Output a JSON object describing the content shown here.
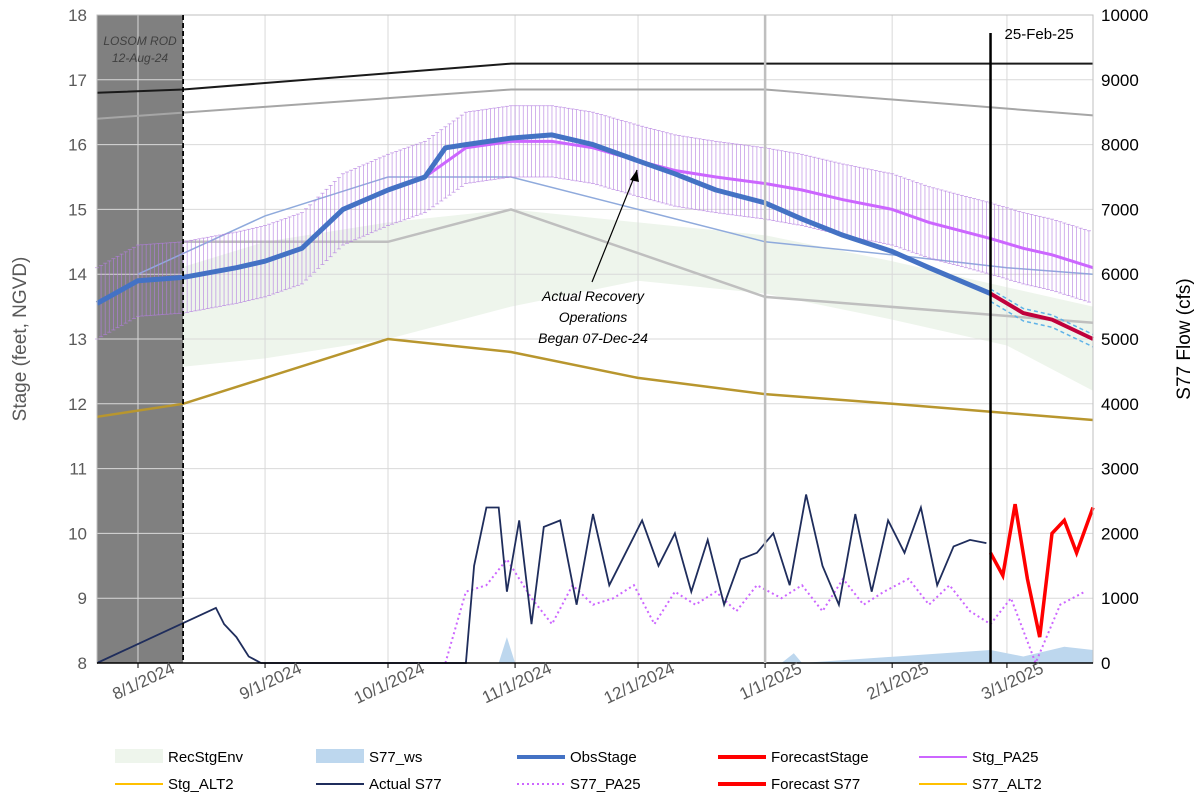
{
  "chart_data": {
    "type": "line",
    "title": "",
    "ylabel": "Stage (feet, NGVD)",
    "y2label": "S77 Flow (cfs)",
    "ylim": [
      8,
      18
    ],
    "y2lim": [
      0,
      10000
    ],
    "xlim": [
      "2024-07-22",
      "2025-03-22"
    ],
    "y_ticks": [
      "8",
      "9",
      "10",
      "11",
      "12",
      "13",
      "14",
      "15",
      "16",
      "17",
      "18"
    ],
    "y2_ticks": [
      "0",
      "1000",
      "2000",
      "3000",
      "4000",
      "5000",
      "6000",
      "7000",
      "8000",
      "9000",
      "10000"
    ],
    "x_ticks": [
      {
        "date": "2024-08-01",
        "label": "8/1/2024"
      },
      {
        "date": "2024-09-01",
        "label": "9/1/2024"
      },
      {
        "date": "2024-10-01",
        "label": "10/1/2024"
      },
      {
        "date": "2024-11-01",
        "label": "11/1/2024"
      },
      {
        "date": "2024-12-01",
        "label": "12/1/2024"
      },
      {
        "date": "2025-01-01",
        "label": "1/1/2025"
      },
      {
        "date": "2025-02-01",
        "label": "2/1/2025"
      },
      {
        "date": "2025-03-01",
        "label": "3/1/2025"
      }
    ],
    "grid": true,
    "legend_position": "bottom",
    "shaded_period": {
      "start": "2024-07-22",
      "end": "2024-08-12"
    },
    "annotations": {
      "losom_line1": "LOSOM ROD",
      "losom_line2": "12-Aug-24",
      "forecast_date": "25-Feb-25",
      "recovery_line1": "Actual Recovery",
      "recovery_line2": "Operations",
      "recovery_line3": "Began 07-Dec-24"
    },
    "legend": [
      {
        "label": "RecStgEnv",
        "color": "#eef5ec",
        "kind": "area"
      },
      {
        "label": "S77_ws",
        "color": "#bdd7ee",
        "kind": "area"
      },
      {
        "label": "ObsStage",
        "color": "#4472c4",
        "kind": "thick"
      },
      {
        "label": "ForecastStage",
        "color": "#ff0000",
        "kind": "thick"
      },
      {
        "label": "Stg_PA25",
        "color": "#cc66ff",
        "kind": "line"
      },
      {
        "label": "Stg_ALT2",
        "color": "#ffc000",
        "kind": "line"
      },
      {
        "label": "Actual S77",
        "color": "#1f2d5c",
        "kind": "line"
      },
      {
        "label": "S77_PA25",
        "color": "#cc66ff",
        "kind": "dotted"
      },
      {
        "label": "Forecast S77",
        "color": "#ff0000",
        "kind": "thick"
      },
      {
        "label": "S77_ALT2",
        "color": "#ffc000",
        "kind": "line"
      }
    ],
    "series": {
      "rec_env_upper": {
        "x": [
          "2024-08-01",
          "2024-09-01",
          "2024-10-01",
          "2024-10-31",
          "2024-12-01",
          "2025-01-01",
          "2025-02-01",
          "2025-03-01",
          "2025-03-22"
        ],
        "y": [
          13.9,
          14.5,
          14.8,
          15.0,
          14.8,
          14.6,
          14.2,
          13.8,
          13.5
        ]
      },
      "rec_env_lower": {
        "x": [
          "2024-08-01",
          "2024-09-01",
          "2024-10-01",
          "2024-10-31",
          "2024-12-01",
          "2025-01-01",
          "2025-02-01",
          "2025-03-01",
          "2025-03-22"
        ],
        "y": [
          12.5,
          12.7,
          13.0,
          13.5,
          13.9,
          13.7,
          13.3,
          12.9,
          12.2
        ]
      },
      "upper_black": {
        "x": [
          "2024-07-22",
          "2024-08-12",
          "2024-10-01",
          "2024-10-31",
          "2025-03-22"
        ],
        "y": [
          16.8,
          16.85,
          17.1,
          17.25,
          17.25
        ]
      },
      "upper_gray": {
        "x": [
          "2024-07-22",
          "2024-10-31",
          "2025-01-01",
          "2025-03-22"
        ],
        "y": [
          16.4,
          16.85,
          16.85,
          16.45
        ]
      },
      "mid_gray": {
        "x": [
          "2024-08-12",
          "2024-10-01",
          "2024-10-31",
          "2025-01-01",
          "2025-03-22"
        ],
        "y": [
          14.5,
          14.5,
          15.0,
          13.65,
          13.25
        ]
      },
      "lower_gold": {
        "x": [
          "2024-07-22",
          "2024-08-12",
          "2024-10-01",
          "2024-10-31",
          "2024-12-01",
          "2025-01-01",
          "2025-02-01",
          "2025-03-22"
        ],
        "y": [
          11.8,
          12.0,
          13.0,
          12.8,
          12.4,
          12.15,
          12.0,
          11.75
        ]
      },
      "Stg_ALT2": {
        "x": [
          "2024-08-01",
          "2024-09-01",
          "2024-10-01",
          "2024-10-31",
          "2024-12-01",
          "2025-01-01",
          "2025-02-01",
          "2025-03-01",
          "2025-03-22"
        ],
        "y": [
          14.0,
          14.9,
          15.5,
          15.5,
          15.0,
          14.5,
          14.3,
          14.1,
          14.0
        ]
      },
      "ObsStage": {
        "x": [
          "2024-07-22",
          "2024-08-01",
          "2024-08-12",
          "2024-08-25",
          "2024-09-01",
          "2024-09-10",
          "2024-09-20",
          "2024-10-01",
          "2024-10-10",
          "2024-10-15",
          "2024-10-20",
          "2024-10-31",
          "2024-11-10",
          "2024-11-20",
          "2024-12-01",
          "2024-12-10",
          "2024-12-20",
          "2025-01-01",
          "2025-01-10",
          "2025-01-20",
          "2025-02-01",
          "2025-02-10",
          "2025-02-25"
        ],
        "y": [
          13.55,
          13.9,
          13.95,
          14.1,
          14.2,
          14.4,
          15.0,
          15.3,
          15.5,
          15.95,
          16.0,
          16.1,
          16.15,
          16.0,
          15.75,
          15.55,
          15.3,
          15.1,
          14.85,
          14.6,
          14.35,
          14.1,
          13.7
        ]
      },
      "ForecastStage": {
        "x": [
          "2025-02-25",
          "2025-03-05",
          "2025-03-12",
          "2025-03-22"
        ],
        "y": [
          13.7,
          13.4,
          13.3,
          13.0
        ]
      },
      "Stg_PA25": {
        "x": [
          "2024-07-22",
          "2024-08-01",
          "2024-08-12",
          "2024-08-25",
          "2024-09-01",
          "2024-09-10",
          "2024-09-20",
          "2024-10-01",
          "2024-10-10",
          "2024-10-20",
          "2024-10-31",
          "2024-11-10",
          "2024-11-20",
          "2024-12-01",
          "2024-12-10",
          "2024-12-20",
          "2025-01-01",
          "2025-01-10",
          "2025-01-20",
          "2025-02-01",
          "2025-02-10",
          "2025-02-25",
          "2025-03-05",
          "2025-03-12",
          "2025-03-22"
        ],
        "y": [
          13.55,
          13.9,
          13.95,
          14.1,
          14.2,
          14.4,
          15.0,
          15.3,
          15.5,
          15.95,
          16.05,
          16.05,
          15.95,
          15.75,
          15.6,
          15.5,
          15.4,
          15.3,
          15.15,
          15.0,
          14.8,
          14.55,
          14.4,
          14.3,
          14.1
        ]
      },
      "Actual S77": {
        "x": [
          "2024-07-22",
          "2024-08-20",
          "2024-08-22",
          "2024-08-25",
          "2024-08-28",
          "2024-08-31",
          "2024-09-02",
          "2024-10-20",
          "2024-10-22",
          "2024-10-25",
          "2024-10-28",
          "2024-10-30",
          "2024-11-02",
          "2024-11-05",
          "2024-11-08",
          "2024-11-12",
          "2024-11-16",
          "2024-11-20",
          "2024-11-24",
          "2024-11-28",
          "2024-12-02",
          "2024-12-06",
          "2024-12-10",
          "2024-12-14",
          "2024-12-18",
          "2024-12-22",
          "2024-12-26",
          "2024-12-30",
          "2025-01-03",
          "2025-01-07",
          "2025-01-11",
          "2025-01-15",
          "2025-01-19",
          "2025-01-23",
          "2025-01-27",
          "2025-01-31",
          "2025-02-04",
          "2025-02-08",
          "2025-02-12",
          "2025-02-16",
          "2025-02-20",
          "2025-02-24"
        ],
        "y": [
          0,
          850,
          600,
          400,
          100,
          0,
          0,
          0,
          1500,
          2400,
          2400,
          1100,
          2200,
          600,
          2100,
          2200,
          900,
          2300,
          1200,
          1700,
          2200,
          1500,
          2000,
          1100,
          1900,
          900,
          1600,
          1700,
          2000,
          1200,
          2600,
          1500,
          900,
          2300,
          1100,
          2200,
          1700,
          2400,
          1200,
          1800,
          1900,
          1850
        ]
      },
      "Forecast S77": {
        "x": [
          "2025-02-25",
          "2025-02-28",
          "2025-03-03",
          "2025-03-06",
          "2025-03-09",
          "2025-03-12",
          "2025-03-15",
          "2025-03-18",
          "2025-03-22"
        ],
        "y": [
          1700,
          1350,
          2450,
          1300,
          400,
          2000,
          2200,
          1700,
          2400
        ]
      },
      "S77_PA25": {
        "x": [
          "2024-10-15",
          "2024-10-20",
          "2024-10-25",
          "2024-10-30",
          "2024-11-05",
          "2024-11-10",
          "2024-11-15",
          "2024-11-20",
          "2024-11-25",
          "2024-11-30",
          "2024-12-05",
          "2024-12-10",
          "2024-12-15",
          "2024-12-20",
          "2024-12-25",
          "2024-12-30",
          "2025-01-05",
          "2025-01-10",
          "2025-01-15",
          "2025-01-20",
          "2025-01-25",
          "2025-01-30",
          "2025-02-05",
          "2025-02-10",
          "2025-02-15",
          "2025-02-20",
          "2025-02-25",
          "2025-03-02",
          "2025-03-08",
          "2025-03-14",
          "2025-03-20"
        ],
        "y": [
          0,
          1100,
          1200,
          1600,
          1000,
          600,
          1200,
          900,
          1000,
          1200,
          600,
          1100,
          900,
          1100,
          800,
          1200,
          1000,
          1200,
          800,
          1300,
          900,
          1100,
          1300,
          900,
          1200,
          800,
          600,
          1000,
          0,
          900,
          1100
        ]
      },
      "S77_ws": {
        "x": [
          "2024-10-28",
          "2024-10-30",
          "2024-11-01",
          "2025-01-05",
          "2025-01-08",
          "2025-01-10",
          "2025-02-25",
          "2025-03-05",
          "2025-03-15",
          "2025-03-22"
        ],
        "y": [
          0,
          400,
          0,
          0,
          150,
          0,
          200,
          100,
          250,
          200
        ]
      }
    }
  }
}
